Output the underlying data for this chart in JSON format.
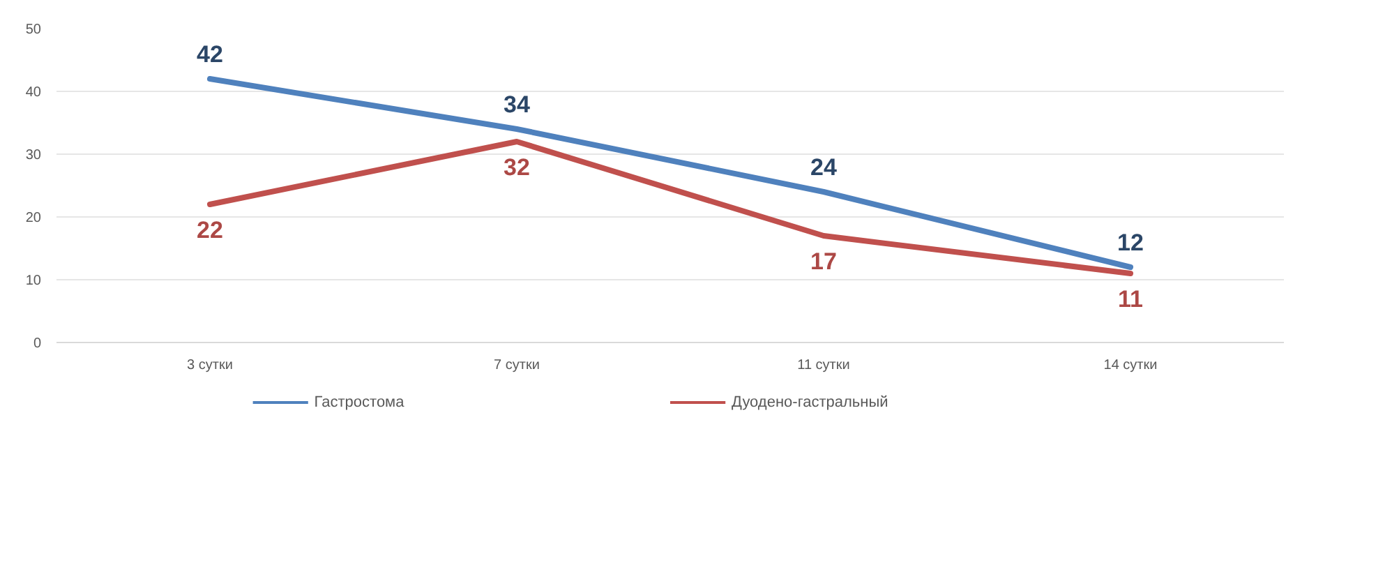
{
  "chart_data": {
    "type": "line",
    "categories": [
      "3 сутки",
      "7 сутки",
      "11 сутки",
      "14 сутки"
    ],
    "series": [
      {
        "name": "Гастростома",
        "color": "#4f81bd",
        "values": [
          42,
          34,
          24,
          12
        ]
      },
      {
        "name": "Дуодено-гастральный",
        "color": "#c0504d",
        "values": [
          22,
          32,
          17,
          11
        ]
      }
    ],
    "ylim": [
      0,
      50
    ],
    "yticks": [
      0,
      10,
      20,
      30,
      40,
      50
    ],
    "grid": "y",
    "legend": "bottom",
    "data_labels": true,
    "marker": "none",
    "line_style": "solid"
  }
}
